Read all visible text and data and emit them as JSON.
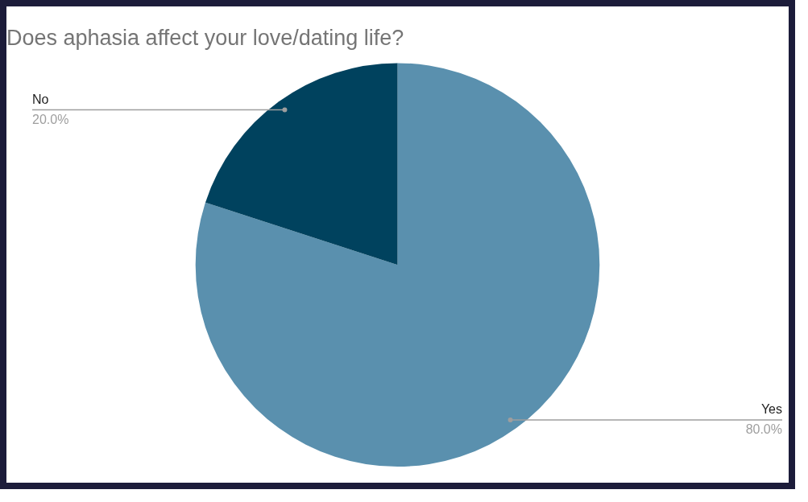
{
  "chart_data": {
    "type": "pie",
    "title": "Does aphasia affect your love/dating life?",
    "categories": [
      "Yes",
      "No"
    ],
    "values": [
      80,
      20
    ],
    "colors": [
      "#5a90ae",
      "#00425e"
    ],
    "value_labels": [
      "80.0%",
      "20.0%"
    ],
    "legend": false
  }
}
